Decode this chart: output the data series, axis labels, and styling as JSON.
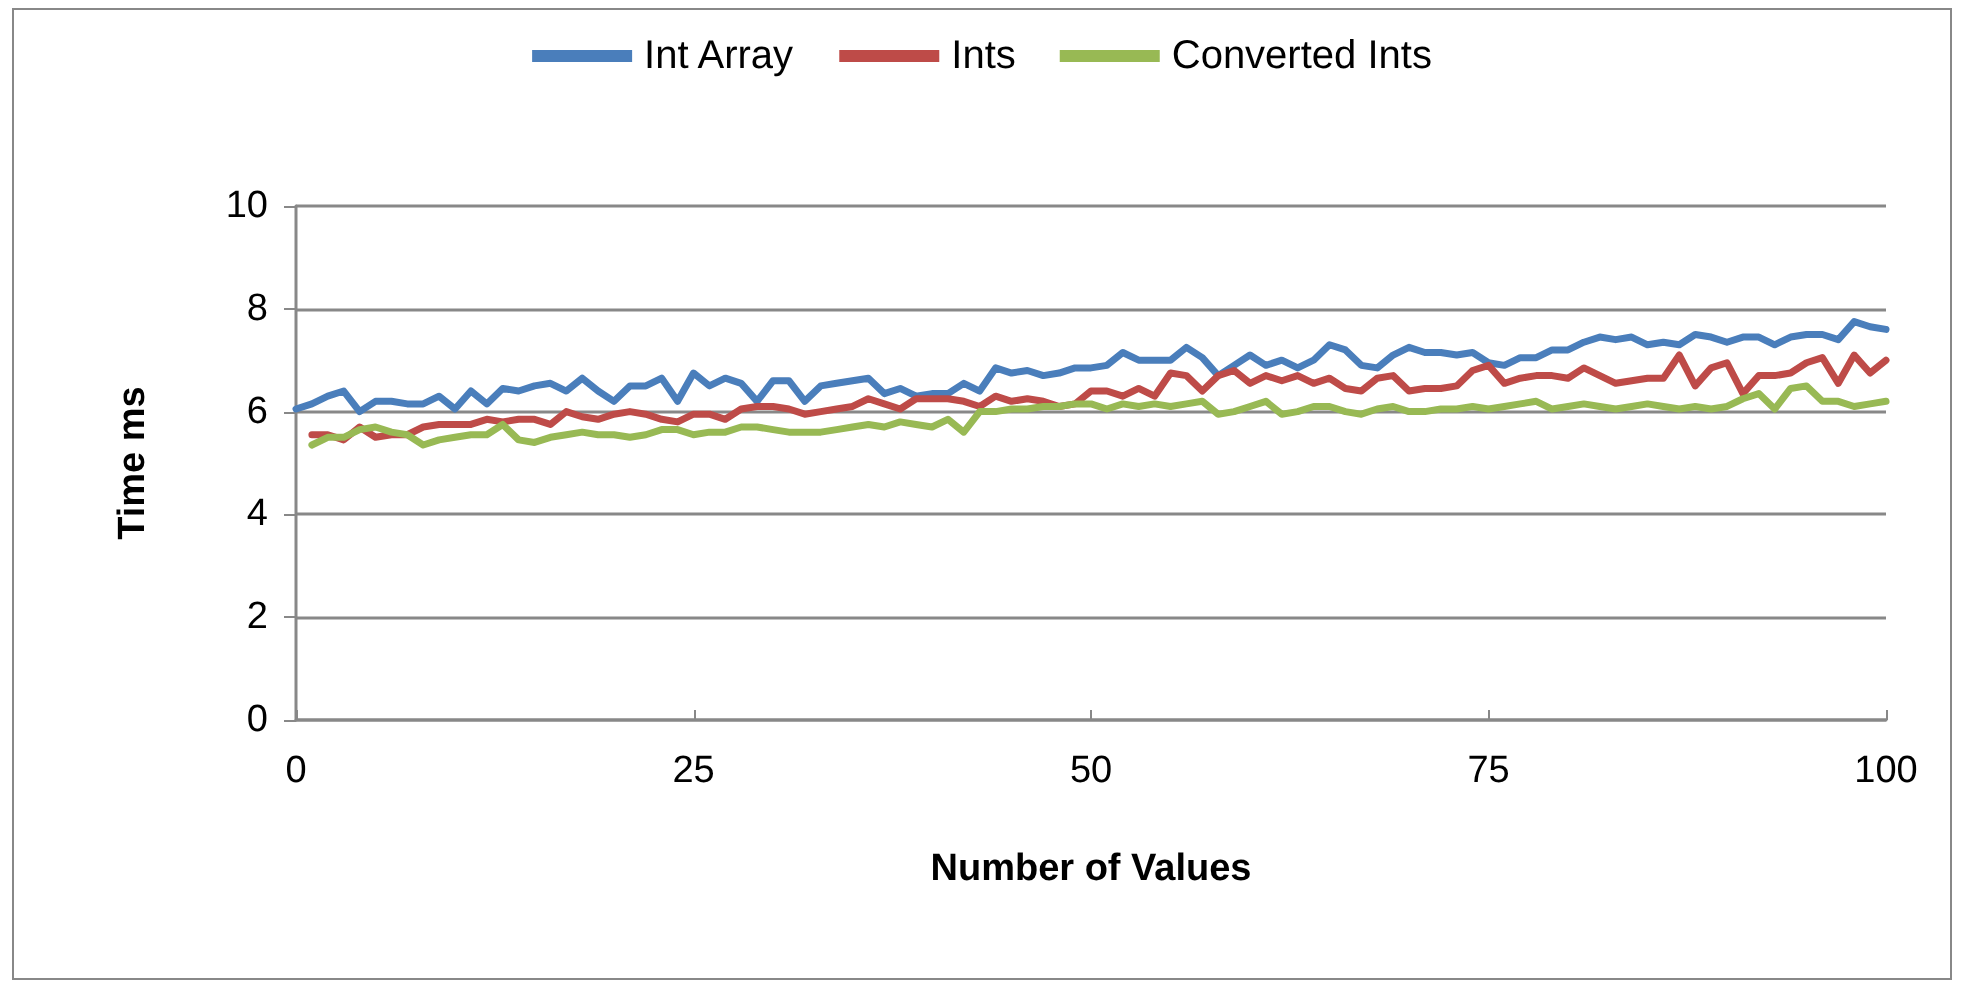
{
  "chart_data": {
    "type": "line",
    "xlabel": "Number of Values",
    "ylabel": "Time ms",
    "xlim": [
      0,
      100
    ],
    "xticks": [
      0,
      25,
      50,
      75,
      100
    ],
    "ylim": [
      0,
      10
    ],
    "yticks": [
      0,
      2,
      4,
      6,
      8,
      10
    ],
    "grid": "y",
    "legend": "top",
    "marker": "none",
    "line_style": "solid",
    "series": [
      {
        "name": "Int Array",
        "color": "#4a7ebb",
        "x": [
          0,
          1,
          2,
          3,
          4,
          5,
          6,
          7,
          8,
          9,
          10,
          11,
          12,
          13,
          14,
          15,
          16,
          17,
          18,
          19,
          20,
          21,
          22,
          23,
          24,
          25,
          26,
          27,
          28,
          29,
          30,
          31,
          32,
          33,
          34,
          35,
          36,
          37,
          38,
          39,
          40,
          41,
          42,
          43,
          44,
          45,
          46,
          47,
          48,
          49,
          50,
          51,
          52,
          53,
          54,
          55,
          56,
          57,
          58,
          59,
          60,
          61,
          62,
          63,
          64,
          65,
          66,
          67,
          68,
          69,
          70,
          71,
          72,
          73,
          74,
          75,
          76,
          77,
          78,
          79,
          80,
          81,
          82,
          83,
          84,
          85,
          86,
          87,
          88,
          89,
          90,
          91,
          92,
          93,
          94,
          95,
          96,
          97,
          98,
          99,
          100
        ],
        "values": [
          6.05,
          6.15,
          6.3,
          6.4,
          6.0,
          6.2,
          6.2,
          6.15,
          6.15,
          6.3,
          6.05,
          6.4,
          6.15,
          6.45,
          6.4,
          6.5,
          6.55,
          6.4,
          6.65,
          6.4,
          6.2,
          6.5,
          6.5,
          6.65,
          6.2,
          6.75,
          6.5,
          6.65,
          6.55,
          6.2,
          6.6,
          6.6,
          6.2,
          6.5,
          6.55,
          6.6,
          6.65,
          6.35,
          6.45,
          6.3,
          6.35,
          6.35,
          6.55,
          6.4,
          6.85,
          6.75,
          6.8,
          6.7,
          6.75,
          6.85,
          6.85,
          6.9,
          7.15,
          7.0,
          7.0,
          7.0,
          7.25,
          7.05,
          6.7,
          6.9,
          7.1,
          6.9,
          7.0,
          6.85,
          7.0,
          7.3,
          7.2,
          6.9,
          6.85,
          7.1,
          7.25,
          7.15,
          7.15,
          7.1,
          7.15,
          6.95,
          6.9,
          7.05,
          7.05,
          7.2,
          7.2,
          7.35,
          7.45,
          7.4,
          7.45,
          7.3,
          7.35,
          7.3,
          7.5,
          7.45,
          7.35,
          7.45,
          7.45,
          7.3,
          7.45,
          7.5,
          7.5,
          7.4,
          7.75,
          7.65,
          7.6
        ]
      },
      {
        "name": "Ints",
        "color": "#be4b48",
        "x": [
          1,
          2,
          3,
          4,
          5,
          6,
          7,
          8,
          9,
          10,
          11,
          12,
          13,
          14,
          15,
          16,
          17,
          18,
          19,
          20,
          21,
          22,
          23,
          24,
          25,
          26,
          27,
          28,
          29,
          30,
          31,
          32,
          33,
          34,
          35,
          36,
          37,
          38,
          39,
          40,
          41,
          42,
          43,
          44,
          45,
          46,
          47,
          48,
          49,
          50,
          51,
          52,
          53,
          54,
          55,
          56,
          57,
          58,
          59,
          60,
          61,
          62,
          63,
          64,
          65,
          66,
          67,
          68,
          69,
          70,
          71,
          72,
          73,
          74,
          75,
          76,
          77,
          78,
          79,
          80,
          81,
          82,
          83,
          84,
          85,
          86,
          87,
          88,
          89,
          90,
          91,
          92,
          93,
          94,
          95,
          96,
          97,
          98,
          99,
          100
        ],
        "values": [
          5.55,
          5.55,
          5.45,
          5.7,
          5.5,
          5.55,
          5.55,
          5.7,
          5.75,
          5.75,
          5.75,
          5.85,
          5.8,
          5.85,
          5.85,
          5.75,
          6.0,
          5.9,
          5.85,
          5.95,
          6.0,
          5.95,
          5.85,
          5.8,
          5.95,
          5.95,
          5.85,
          6.05,
          6.1,
          6.1,
          6.05,
          5.95,
          6.0,
          6.05,
          6.1,
          6.25,
          6.15,
          6.05,
          6.25,
          6.25,
          6.25,
          6.2,
          6.1,
          6.3,
          6.2,
          6.25,
          6.2,
          6.1,
          6.15,
          6.4,
          6.4,
          6.3,
          6.45,
          6.3,
          6.75,
          6.7,
          6.4,
          6.7,
          6.8,
          6.55,
          6.7,
          6.6,
          6.7,
          6.55,
          6.65,
          6.45,
          6.4,
          6.65,
          6.7,
          6.4,
          6.45,
          6.45,
          6.5,
          6.8,
          6.9,
          6.55,
          6.65,
          6.7,
          6.7,
          6.65,
          6.85,
          6.7,
          6.55,
          6.6,
          6.65,
          6.65,
          7.1,
          6.5,
          6.85,
          6.95,
          6.35,
          6.7,
          6.7,
          6.75,
          6.95,
          7.05,
          6.55,
          7.1,
          6.75,
          7.0
        ]
      },
      {
        "name": "Converted Ints",
        "color": "#98b954",
        "x": [
          1,
          2,
          3,
          4,
          5,
          6,
          7,
          8,
          9,
          10,
          11,
          12,
          13,
          14,
          15,
          16,
          17,
          18,
          19,
          20,
          21,
          22,
          23,
          24,
          25,
          26,
          27,
          28,
          29,
          30,
          31,
          32,
          33,
          34,
          35,
          36,
          37,
          38,
          39,
          40,
          41,
          42,
          43,
          44,
          45,
          46,
          47,
          48,
          49,
          50,
          51,
          52,
          53,
          54,
          55,
          56,
          57,
          58,
          59,
          60,
          61,
          62,
          63,
          64,
          65,
          66,
          67,
          68,
          69,
          70,
          71,
          72,
          73,
          74,
          75,
          76,
          77,
          78,
          79,
          80,
          81,
          82,
          83,
          84,
          85,
          86,
          87,
          88,
          89,
          90,
          91,
          92,
          93,
          94,
          95,
          96,
          97,
          98,
          99,
          100
        ],
        "values": [
          5.35,
          5.5,
          5.5,
          5.65,
          5.7,
          5.6,
          5.55,
          5.35,
          5.45,
          5.5,
          5.55,
          5.55,
          5.75,
          5.45,
          5.4,
          5.5,
          5.55,
          5.6,
          5.55,
          5.55,
          5.5,
          5.55,
          5.65,
          5.65,
          5.55,
          5.6,
          5.6,
          5.7,
          5.7,
          5.65,
          5.6,
          5.6,
          5.6,
          5.65,
          5.7,
          5.75,
          5.7,
          5.8,
          5.75,
          5.7,
          5.85,
          5.6,
          6.0,
          6.0,
          6.05,
          6.05,
          6.1,
          6.1,
          6.15,
          6.15,
          6.05,
          6.15,
          6.1,
          6.15,
          6.1,
          6.15,
          6.2,
          5.95,
          6.0,
          6.1,
          6.2,
          5.95,
          6.0,
          6.1,
          6.1,
          6.0,
          5.95,
          6.05,
          6.1,
          6.0,
          6.0,
          6.05,
          6.05,
          6.1,
          6.05,
          6.1,
          6.15,
          6.2,
          6.05,
          6.1,
          6.15,
          6.1,
          6.05,
          6.1,
          6.15,
          6.1,
          6.05,
          6.1,
          6.05,
          6.1,
          6.25,
          6.35,
          6.05,
          6.45,
          6.5,
          6.2,
          6.2,
          6.1,
          6.15,
          6.2
        ]
      }
    ]
  }
}
